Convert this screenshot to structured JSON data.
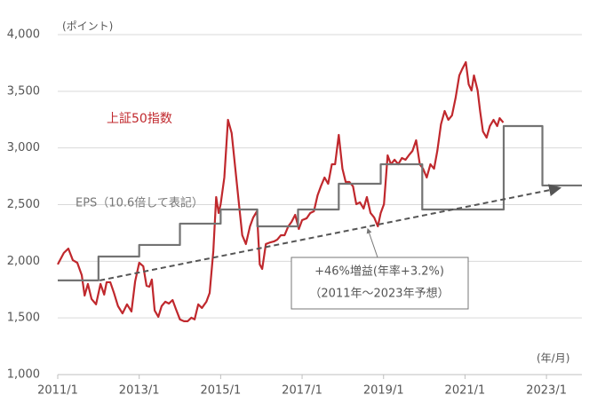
{
  "chart_data": {
    "type": "line",
    "y_unit": "(ポイント)",
    "x_unit": "(年/月)",
    "xlim": [
      2011,
      2023.87
    ],
    "xticks": [
      {
        "value": 2011,
        "label": "2011/1"
      },
      {
        "value": 2013,
        "label": "2013/1"
      },
      {
        "value": 2015,
        "label": "2015/1"
      },
      {
        "value": 2017,
        "label": "2017/1"
      },
      {
        "value": 2019,
        "label": "2019/1"
      },
      {
        "value": 2021,
        "label": "2021/1"
      },
      {
        "value": 2023,
        "label": "2023/1"
      }
    ],
    "ylim": [
      1000,
      4000
    ],
    "yticks": [
      {
        "value": 1000,
        "label": "1,000"
      },
      {
        "value": 1500,
        "label": "1,500"
      },
      {
        "value": 2000,
        "label": "2,000"
      },
      {
        "value": 2500,
        "label": "2,500"
      },
      {
        "value": 3000,
        "label": "3,000"
      },
      {
        "value": 3500,
        "label": "3,500"
      },
      {
        "value": 4000,
        "label": "4,000"
      }
    ],
    "grid": true,
    "series": [
      {
        "name": "上証50指数",
        "color": "#c0282d",
        "step": false,
        "x": [
          2011.0,
          2011.15,
          2011.26,
          2011.37,
          2011.48,
          2011.59,
          2011.66,
          2011.74,
          2011.83,
          2011.94,
          2012.05,
          2012.14,
          2012.2,
          2012.29,
          2012.38,
          2012.48,
          2012.59,
          2012.7,
          2012.81,
          2012.9,
          2013.0,
          2013.1,
          2013.18,
          2013.25,
          2013.31,
          2013.38,
          2013.47,
          2013.55,
          2013.64,
          2013.73,
          2013.82,
          2013.9,
          2014.0,
          2014.1,
          2014.19,
          2014.28,
          2014.36,
          2014.45,
          2014.54,
          2014.65,
          2014.73,
          2014.82,
          2014.89,
          2014.95,
          2015.0,
          2015.09,
          2015.18,
          2015.27,
          2015.36,
          2015.45,
          2015.53,
          2015.62,
          2015.72,
          2015.8,
          2015.89,
          2015.96,
          2016.02,
          2016.11,
          2016.22,
          2016.31,
          2016.39,
          2016.48,
          2016.57,
          2016.66,
          2016.74,
          2016.83,
          2016.92,
          2017.0,
          2017.11,
          2017.2,
          2017.29,
          2017.38,
          2017.46,
          2017.55,
          2017.64,
          2017.73,
          2017.81,
          2017.9,
          2017.99,
          2018.07,
          2018.16,
          2018.25,
          2018.33,
          2018.42,
          2018.51,
          2018.59,
          2018.68,
          2018.77,
          2018.86,
          2018.93,
          2019.01,
          2019.1,
          2019.18,
          2019.27,
          2019.36,
          2019.45,
          2019.54,
          2019.62,
          2019.71,
          2019.8,
          2019.89,
          2019.97,
          2020.06,
          2020.15,
          2020.24,
          2020.32,
          2020.41,
          2020.5,
          2020.59,
          2020.68,
          2020.77,
          2020.86,
          2020.93,
          2021.02,
          2021.09,
          2021.16,
          2021.22,
          2021.31,
          2021.37,
          2021.44,
          2021.53,
          2021.61,
          2021.7,
          2021.79,
          2021.85,
          2021.94
        ],
        "values": [
          1972,
          2074,
          2112,
          2010,
          1987,
          1877,
          1697,
          1800,
          1667,
          1620,
          1800,
          1706,
          1815,
          1815,
          1721,
          1604,
          1540,
          1620,
          1557,
          1822,
          1987,
          1956,
          1784,
          1776,
          1839,
          1565,
          1510,
          1604,
          1643,
          1627,
          1658,
          1580,
          1487,
          1471,
          1471,
          1502,
          1487,
          1620,
          1588,
          1643,
          1721,
          2089,
          2567,
          2426,
          2504,
          2739,
          3248,
          3131,
          2817,
          2504,
          2230,
          2152,
          2308,
          2386,
          2441,
          1972,
          1932,
          2152,
          2167,
          2175,
          2191,
          2230,
          2230,
          2308,
          2347,
          2410,
          2285,
          2363,
          2379,
          2426,
          2441,
          2582,
          2661,
          2739,
          2684,
          2856,
          2856,
          3115,
          2817,
          2700,
          2700,
          2661,
          2504,
          2520,
          2465,
          2567,
          2426,
          2386,
          2308,
          2426,
          2504,
          2935,
          2856,
          2896,
          2856,
          2911,
          2896,
          2935,
          2974,
          3068,
          2856,
          2817,
          2739,
          2856,
          2817,
          2974,
          3209,
          3326,
          3248,
          3287,
          3444,
          3640,
          3695,
          3757,
          3561,
          3507,
          3640,
          3507,
          3326,
          3146,
          3091,
          3193,
          3248,
          3193,
          3263,
          3224
        ]
      },
      {
        "name": "EPS（10.6倍して表記）",
        "color": "#737373",
        "step": true,
        "x": [
          2011.0,
          2012.0,
          2013.0,
          2014.0,
          2015.0,
          2015.9,
          2016.9,
          2017.9,
          2018.93,
          2019.95,
          2021.95,
          2022.9,
          2023.87
        ],
        "values": [
          1831,
          2042,
          2144,
          2332,
          2457,
          2308,
          2457,
          2684,
          2856,
          2457,
          3193,
          2669,
          2669
        ]
      }
    ],
    "trend": {
      "label_lines": [
        "+46%増益(年率+3.2%)",
        "（2011年～2023年予想）"
      ],
      "x": [
        2012.03,
        2023.31
      ],
      "values": [
        1831,
        2645
      ]
    }
  }
}
